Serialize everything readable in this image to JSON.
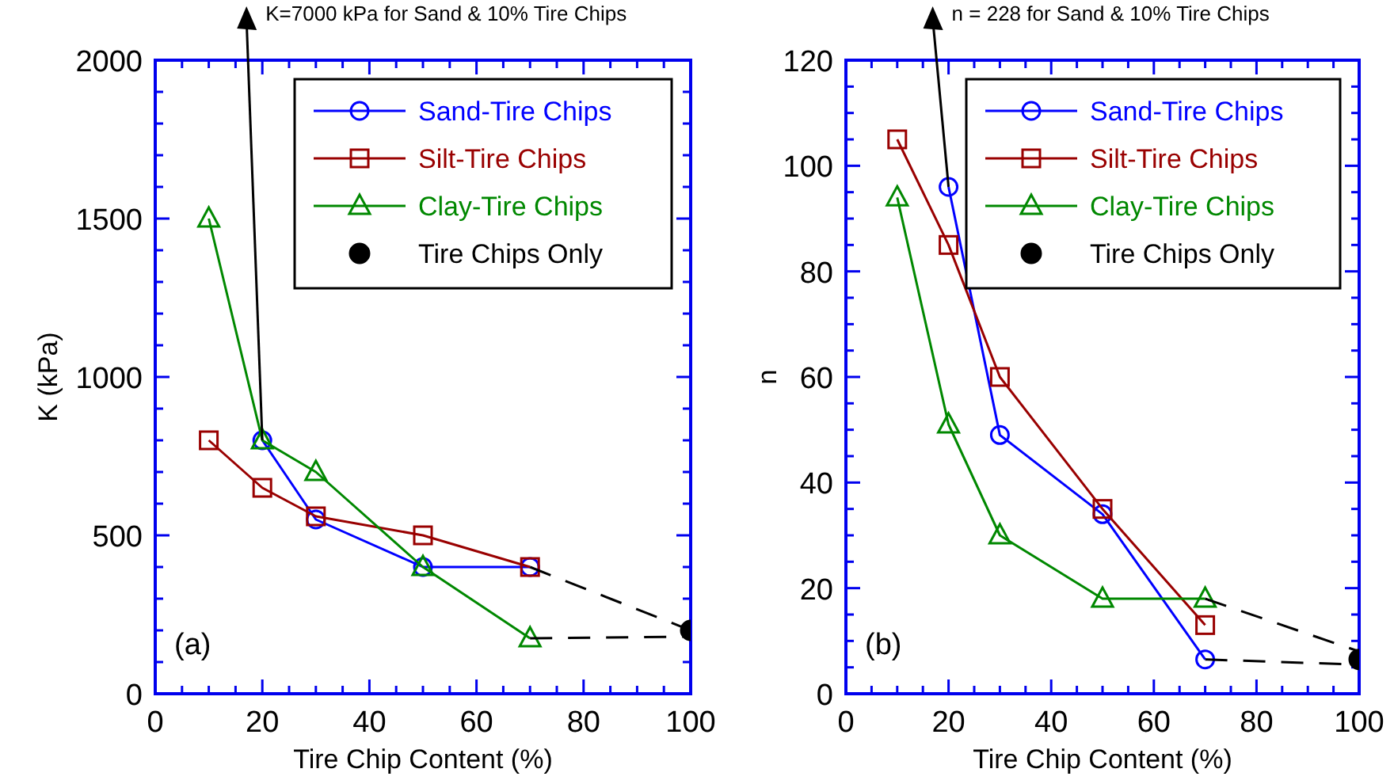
{
  "chart_data": [
    {
      "type": "line",
      "xlabel": "Tire Chip Content (%)",
      "ylabel": "K (kPa)",
      "annotations": [
        "K=7000 kPa for Sand & 10% Tire Chips",
        "(a)"
      ],
      "xlim": [
        0,
        100
      ],
      "ylim": [
        0,
        2000
      ],
      "xticks": [
        0,
        {
          "value": 5,
          "label": null
        },
        {
          "value": 10,
          "label": null
        },
        {
          "value": 15,
          "label": null
        },
        20,
        {
          "value": 25,
          "label": null
        },
        {
          "value": 30,
          "label": null
        },
        {
          "value": 35,
          "label": null
        },
        40,
        {
          "value": 45,
          "label": null
        },
        {
          "value": 50,
          "label": null
        },
        {
          "value": 55,
          "label": null
        },
        60,
        {
          "value": 65,
          "label": null
        },
        {
          "value": 70,
          "label": null
        },
        {
          "value": 75,
          "label": null
        },
        80,
        {
          "value": 85,
          "label": null
        },
        {
          "value": 90,
          "label": null
        },
        {
          "value": 95,
          "label": null
        },
        100
      ],
      "yticks": [
        0,
        {
          "value": 100,
          "label": null
        },
        {
          "value": 200,
          "label": null
        },
        {
          "value": 300,
          "label": null
        },
        {
          "value": 400,
          "label": null
        },
        500,
        {
          "value": 600,
          "label": null
        },
        {
          "value": 700,
          "label": null
        },
        {
          "value": 800,
          "label": null
        },
        {
          "value": 900,
          "label": null
        },
        1000,
        {
          "value": 1100,
          "label": null
        },
        {
          "value": 1200,
          "label": null
        },
        {
          "value": 1300,
          "label": null
        },
        {
          "value": 1400,
          "label": null
        },
        1500,
        {
          "value": 1600,
          "label": null
        },
        {
          "value": 1700,
          "label": null
        },
        {
          "value": 1800,
          "label": null
        },
        {
          "value": 1900,
          "label": null
        },
        2000
      ],
      "grid": false,
      "legend": "top right",
      "series": [
        {
          "name": "Sand-Tire Chips",
          "color": "#0000ff",
          "marker": "circle",
          "x": [
            20,
            30,
            50,
            70
          ],
          "values": [
            800,
            550,
            400,
            400
          ]
        },
        {
          "name": "Silt-Tire Chips",
          "color": "#990000",
          "marker": "square",
          "x": [
            10,
            20,
            30,
            50,
            70
          ],
          "values": [
            800,
            650,
            560,
            500,
            400
          ]
        },
        {
          "name": "Clay-Tire Chips",
          "color": "#008800",
          "marker": "triangle",
          "x": [
            10,
            20,
            30,
            50,
            70
          ],
          "values": [
            1500,
            800,
            700,
            400,
            175
          ]
        },
        {
          "name": "Tire Chips Only",
          "type": "scatter",
          "color": "#000000",
          "marker": "circle",
          "x": [
            100
          ],
          "values": [
            200
          ]
        },
        {
          "type": "line",
          "color": "#000000",
          "line_style": "dashed",
          "marker": "none",
          "x": [
            70,
            100
          ],
          "values": [
            400,
            200
          ]
        },
        {
          "type": "line",
          "color": "#000000",
          "line_style": "dashed",
          "marker": "none",
          "x": [
            70,
            100
          ],
          "values": [
            175,
            180
          ]
        }
      ]
    },
    {
      "type": "line",
      "xlabel": "Tire Chip Content (%)",
      "ylabel": "n",
      "annotations": [
        "n = 228 for Sand & 10% Tire Chips",
        "(b)"
      ],
      "xlim": [
        0,
        100
      ],
      "ylim": [
        0,
        120
      ],
      "xticks": [
        0,
        {
          "value": 5,
          "label": null
        },
        {
          "value": 10,
          "label": null
        },
        {
          "value": 15,
          "label": null
        },
        20,
        {
          "value": 25,
          "label": null
        },
        {
          "value": 30,
          "label": null
        },
        {
          "value": 35,
          "label": null
        },
        40,
        {
          "value": 45,
          "label": null
        },
        {
          "value": 50,
          "label": null
        },
        {
          "value": 55,
          "label": null
        },
        60,
        {
          "value": 65,
          "label": null
        },
        {
          "value": 70,
          "label": null
        },
        {
          "value": 75,
          "label": null
        },
        80,
        {
          "value": 85,
          "label": null
        },
        {
          "value": 90,
          "label": null
        },
        {
          "value": 95,
          "label": null
        },
        100
      ],
      "yticks": [
        0,
        {
          "value": 5,
          "label": null
        },
        {
          "value": 10,
          "label": null
        },
        {
          "value": 15,
          "label": null
        },
        20,
        {
          "value": 25,
          "label": null
        },
        {
          "value": 30,
          "label": null
        },
        {
          "value": 35,
          "label": null
        },
        40,
        {
          "value": 45,
          "label": null
        },
        {
          "value": 50,
          "label": null
        },
        {
          "value": 55,
          "label": null
        },
        60,
        {
          "value": 65,
          "label": null
        },
        {
          "value": 70,
          "label": null
        },
        {
          "value": 75,
          "label": null
        },
        80,
        {
          "value": 85,
          "label": null
        },
        {
          "value": 90,
          "label": null
        },
        {
          "value": 95,
          "label": null
        },
        100,
        {
          "value": 105,
          "label": null
        },
        {
          "value": 110,
          "label": null
        },
        {
          "value": 115,
          "label": null
        },
        120
      ],
      "grid": false,
      "legend": "top right",
      "series": [
        {
          "name": "Sand-Tire Chips",
          "color": "#0000ff",
          "marker": "circle",
          "x": [
            20,
            30,
            50,
            70
          ],
          "values": [
            96,
            49,
            34,
            6.5
          ]
        },
        {
          "name": "Silt-Tire Chips",
          "color": "#990000",
          "marker": "square",
          "x": [
            10,
            20,
            30,
            50,
            70
          ],
          "values": [
            105,
            85,
            60,
            35,
            13
          ]
        },
        {
          "name": "Clay-Tire Chips",
          "color": "#008800",
          "marker": "triangle",
          "x": [
            10,
            20,
            30,
            50,
            70
          ],
          "values": [
            94,
            51,
            30,
            18,
            18
          ]
        },
        {
          "name": "Tire Chips Only",
          "type": "scatter",
          "color": "#000000",
          "marker": "circle",
          "x": [
            100
          ],
          "values": [
            6.5
          ]
        },
        {
          "type": "line",
          "color": "#000000",
          "line_style": "dashed",
          "marker": "none",
          "x": [
            70,
            100
          ],
          "values": [
            18,
            8
          ]
        },
        {
          "type": "line",
          "color": "#000000",
          "line_style": "dashed",
          "marker": "none",
          "x": [
            70,
            100
          ],
          "values": [
            6.5,
            5.5
          ]
        }
      ]
    }
  ]
}
